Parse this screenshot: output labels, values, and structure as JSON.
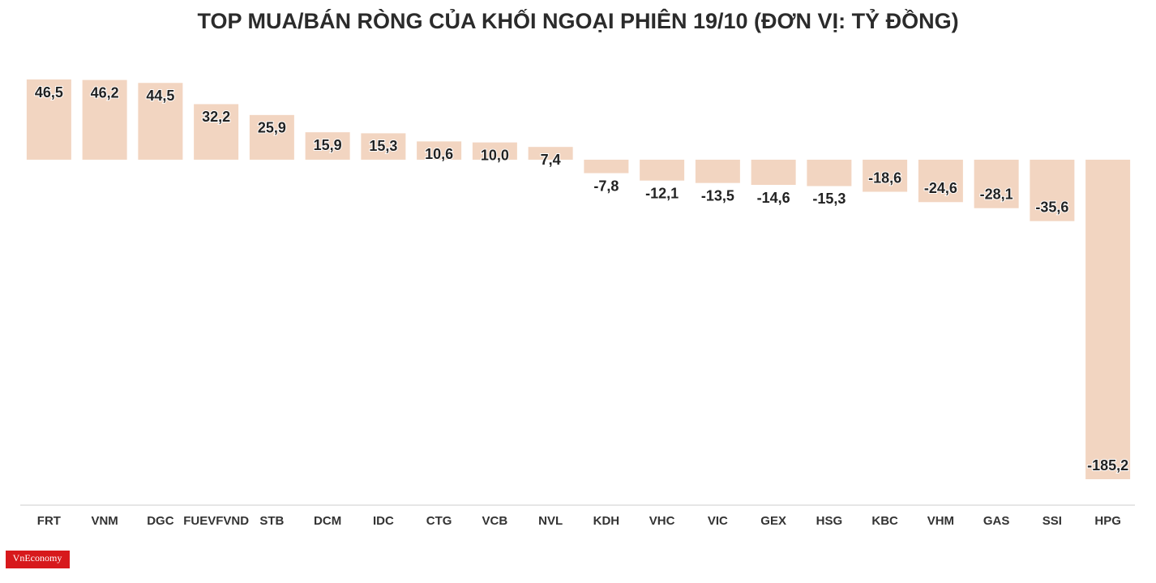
{
  "chart_data": {
    "type": "bar",
    "title": "TOP MUA/BÁN RÒNG CỦA KHỐI NGOẠI PHIÊN 19/10 (ĐƠN VỊ: TỶ ĐỒNG)",
    "categories": [
      "FRT",
      "VNM",
      "DGC",
      "FUEVFVND",
      "STB",
      "DCM",
      "IDC",
      "CTG",
      "VCB",
      "NVL",
      "KDH",
      "VHC",
      "VIC",
      "GEX",
      "HSG",
      "KBC",
      "VHM",
      "GAS",
      "SSI",
      "HPG"
    ],
    "values": [
      46.5,
      46.2,
      44.5,
      32.2,
      25.9,
      15.9,
      15.3,
      10.6,
      10.0,
      7.4,
      -7.8,
      -12.1,
      -13.5,
      -14.6,
      -15.3,
      -18.6,
      -24.6,
      -28.1,
      -35.6,
      -185.2
    ],
    "value_labels": [
      "46,5",
      "46,2",
      "44,5",
      "32,2",
      "25,9",
      "15,9",
      "15,3",
      "10,6",
      "10,0",
      "7,4",
      "-7,8",
      "-12,1",
      "-13,5",
      "-14,6",
      "-15,3",
      "-18,6",
      "-24,6",
      "-28,1",
      "-35,6",
      "-185,2"
    ],
    "color": "#f2d5c1"
  },
  "logo": "VnEconomy"
}
